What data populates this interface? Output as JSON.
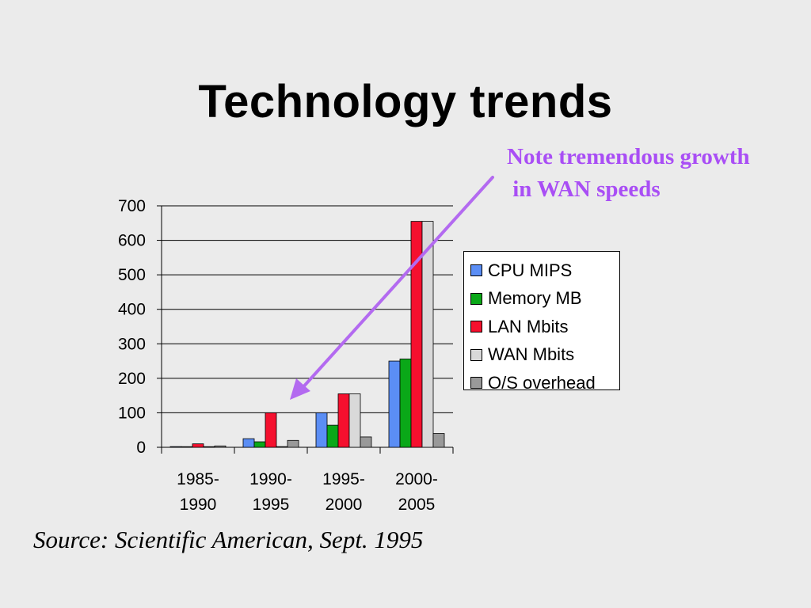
{
  "slide": {
    "title": "Technology trends",
    "note": "Note tremendous growth\n in WAN speeds",
    "source": "Source: Scientific American, Sept. 1995",
    "colors": {
      "background": "#ebebeb",
      "note_text": "#a94ef5",
      "arrow": "#b36af0"
    }
  },
  "chart_data": {
    "type": "bar",
    "categories": [
      [
        "1985-",
        "1990"
      ],
      [
        "1990-",
        "1995"
      ],
      [
        "1995-",
        "2000"
      ],
      [
        "2000-",
        "2005"
      ]
    ],
    "series": [
      {
        "name": "CPU MIPS",
        "color": "#5b8ef5",
        "values": [
          2,
          25,
          100,
          250
        ]
      },
      {
        "name": "Memory MB",
        "color": "#0aa818",
        "values": [
          1,
          16,
          64,
          256
        ]
      },
      {
        "name": "LAN Mbits",
        "color": "#f5102e",
        "values": [
          10,
          100,
          155,
          655
        ]
      },
      {
        "name": "WAN Mbits",
        "color": "#d9d9d9",
        "values": [
          0.01,
          2,
          155,
          655
        ]
      },
      {
        "name": "O/S overhead",
        "color": "#999999",
        "values": [
          4,
          20,
          30,
          40
        ]
      }
    ],
    "ylim": [
      0,
      700
    ],
    "yticks": [
      0,
      100,
      200,
      300,
      400,
      500,
      600,
      700
    ],
    "grid": true,
    "legend": "right",
    "annotation_arrow": "from note toward 1990-1995 WAN bar"
  }
}
